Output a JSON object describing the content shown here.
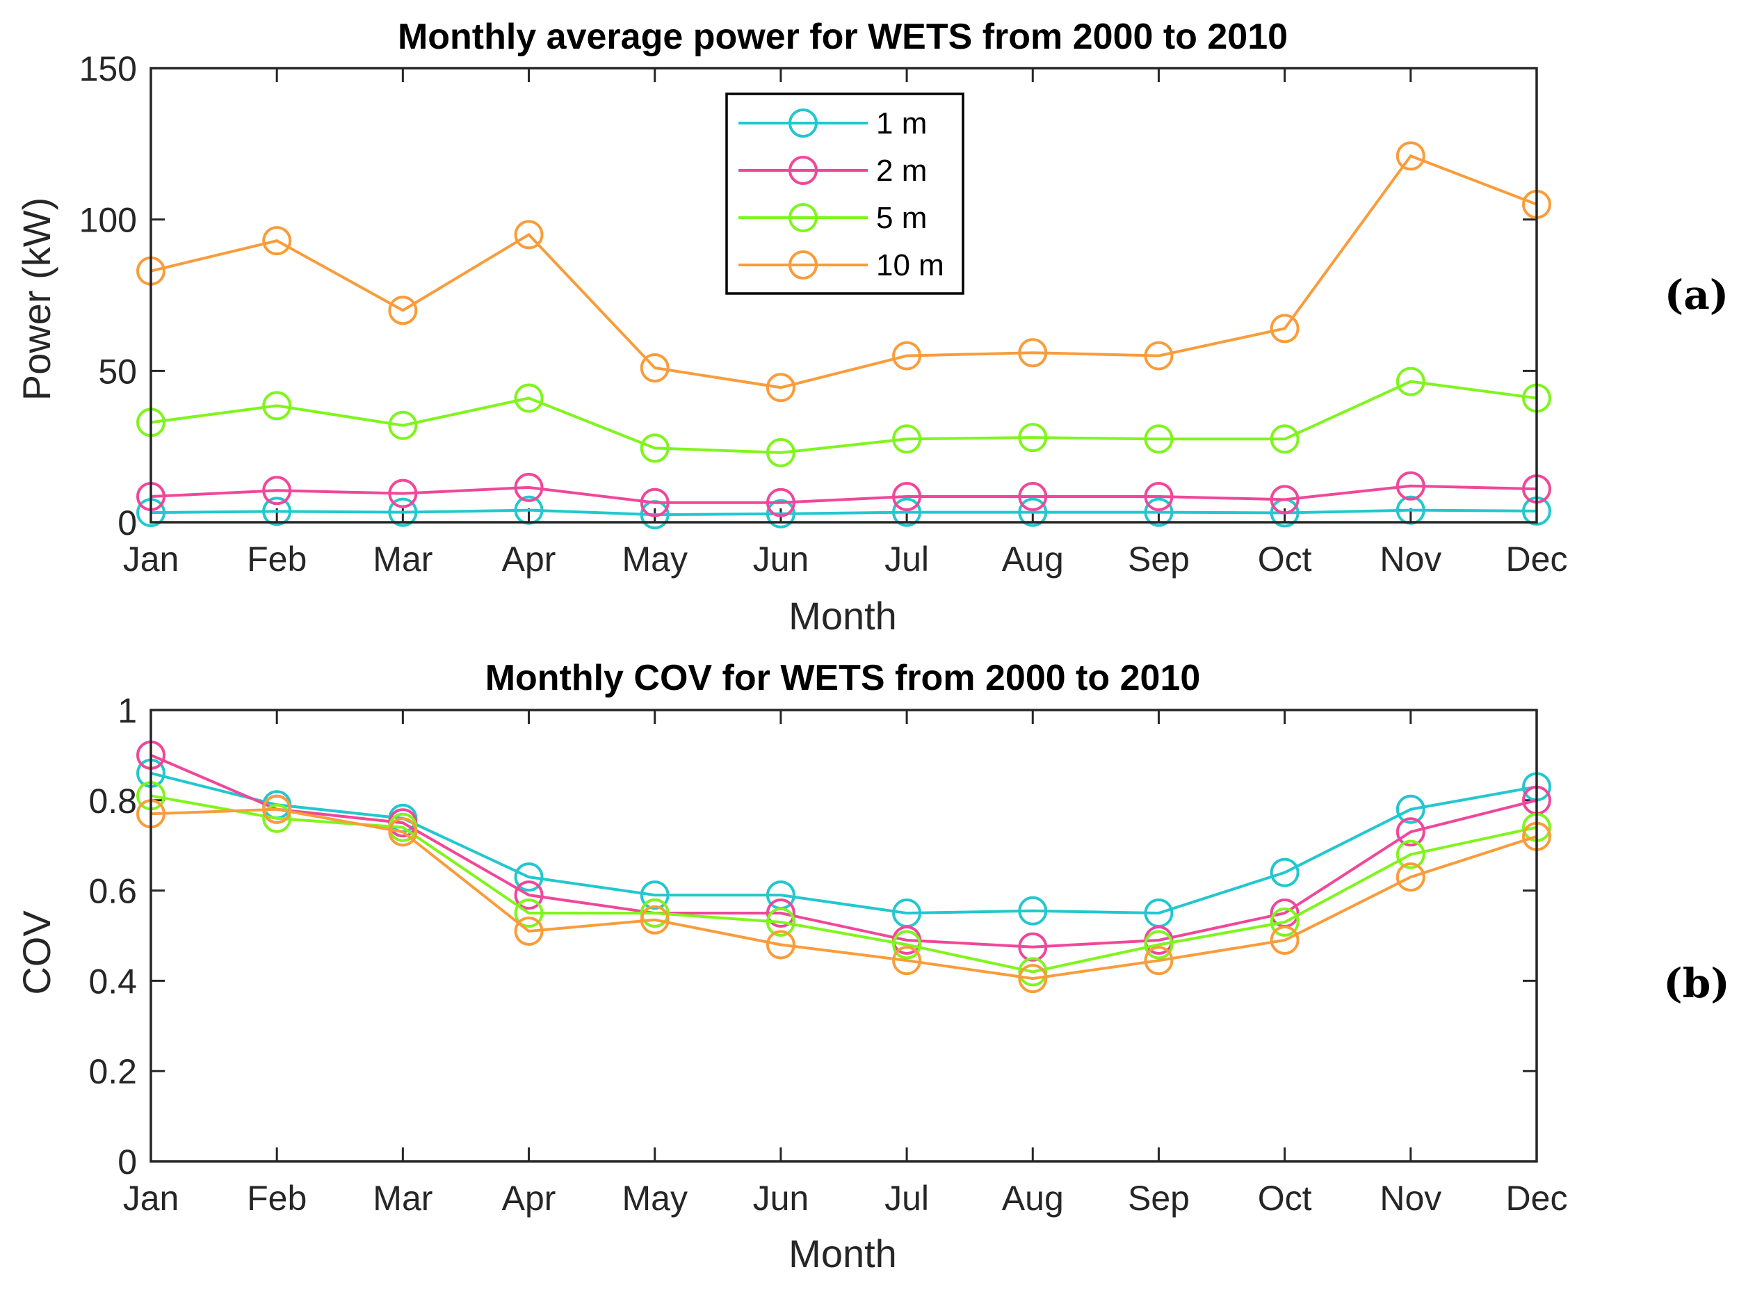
{
  "colors": {
    "1 m": "#22C7CF",
    "2 m": "#F0479A",
    "5 m": "#7FF51C",
    "10 m": "#FA9C3A"
  },
  "chart_data": [
    {
      "type": "line",
      "panel_label": "(a)",
      "title": "Monthly average power for WETS from 2000 to 2010",
      "xlabel": "Month",
      "ylabel": "Power (kW)",
      "categories": [
        "Jan",
        "Feb",
        "Mar",
        "Apr",
        "May",
        "Jun",
        "Jul",
        "Aug",
        "Sep",
        "Oct",
        "Nov",
        "Dec"
      ],
      "ylim": [
        0,
        150
      ],
      "yticks": [
        0,
        50,
        100,
        150
      ],
      "legend": {
        "position": "top-center",
        "entries": [
          "1 m",
          "2 m",
          "5 m",
          "10 m"
        ]
      },
      "series": [
        {
          "name": "1 m",
          "values": [
            3.2,
            3.6,
            3.3,
            4.0,
            2.5,
            2.8,
            3.3,
            3.3,
            3.3,
            3.1,
            4.0,
            3.7
          ]
        },
        {
          "name": "2 m",
          "values": [
            8.5,
            10.5,
            9.5,
            11.5,
            6.5,
            6.5,
            8.5,
            8.5,
            8.5,
            7.5,
            12.0,
            11.0
          ]
        },
        {
          "name": "5 m",
          "values": [
            33,
            38.5,
            32,
            41,
            24.5,
            23,
            27.5,
            28,
            27.5,
            27.5,
            46.5,
            41
          ]
        },
        {
          "name": "10 m",
          "values": [
            83,
            93,
            70,
            95,
            51,
            44.5,
            55,
            56,
            55,
            64,
            121,
            105
          ]
        }
      ]
    },
    {
      "type": "line",
      "panel_label": "(b)",
      "title": "Monthly COV for WETS from 2000 to 2010",
      "xlabel": "Month",
      "ylabel": "COV",
      "categories": [
        "Jan",
        "Feb",
        "Mar",
        "Apr",
        "May",
        "Jun",
        "Jul",
        "Aug",
        "Sep",
        "Oct",
        "Nov",
        "Dec"
      ],
      "ylim": [
        0,
        1
      ],
      "yticks": [
        0,
        0.2,
        0.4,
        0.6,
        0.8,
        1
      ],
      "series": [
        {
          "name": "1 m",
          "values": [
            0.86,
            0.79,
            0.76,
            0.63,
            0.59,
            0.59,
            0.55,
            0.555,
            0.55,
            0.64,
            0.78,
            0.83
          ]
        },
        {
          "name": "2 m",
          "values": [
            0.9,
            0.78,
            0.75,
            0.59,
            0.55,
            0.55,
            0.49,
            0.475,
            0.49,
            0.55,
            0.73,
            0.8
          ]
        },
        {
          "name": "5 m",
          "values": [
            0.81,
            0.76,
            0.74,
            0.55,
            0.55,
            0.53,
            0.48,
            0.42,
            0.48,
            0.53,
            0.68,
            0.74
          ]
        },
        {
          "name": "10 m",
          "values": [
            0.77,
            0.78,
            0.73,
            0.51,
            0.535,
            0.48,
            0.445,
            0.405,
            0.445,
            0.49,
            0.63,
            0.72
          ]
        }
      ]
    }
  ]
}
